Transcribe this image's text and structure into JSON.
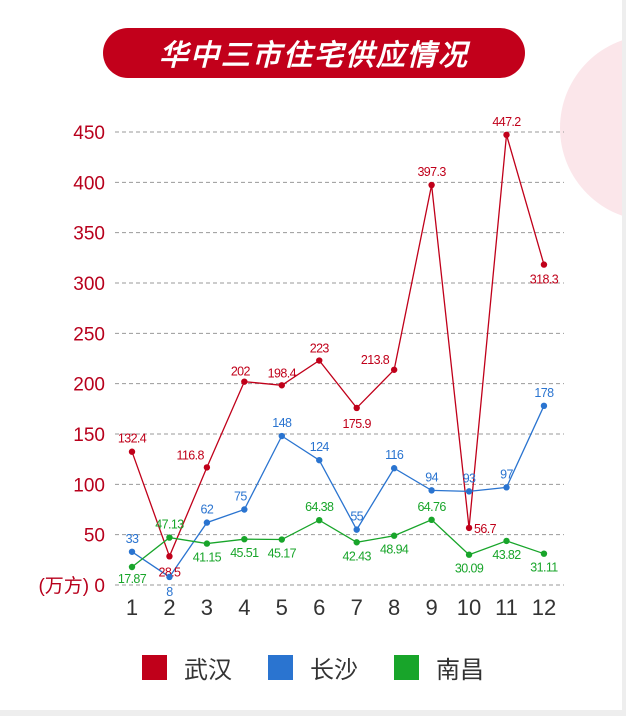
{
  "title": "华中三市住宅供应情况",
  "colors": {
    "title_bg": "#c2001b",
    "axis_label": "#b8001c",
    "grid": "#999999",
    "tick": "#333333",
    "decor_circle": "#fbe6ea"
  },
  "chart_data": {
    "type": "line",
    "title": "华中三市住宅供应情况",
    "xlabel": "",
    "ylabel": "(万方)",
    "categories": [
      "1",
      "2",
      "3",
      "4",
      "5",
      "6",
      "7",
      "8",
      "9",
      "10",
      "11",
      "12"
    ],
    "ylim": [
      0,
      450
    ],
    "yticks": [
      0,
      50,
      100,
      150,
      200,
      250,
      300,
      350,
      400,
      450
    ],
    "ytick_labels": [
      "(万方) 0",
      "50",
      "100",
      "150",
      "200",
      "250",
      "300",
      "350",
      "400",
      "450"
    ],
    "grid": true,
    "grid_style": "dashed",
    "legend_position": "bottom",
    "series": [
      {
        "name": "武汉",
        "color": "#c0001a",
        "values": [
          132.4,
          28.5,
          116.8,
          202,
          198.4,
          223,
          175.9,
          213.8,
          397.3,
          56.7,
          447.2,
          318.3
        ],
        "labels": [
          "132.4",
          "28.5",
          "116.8",
          "202",
          "198.4",
          "223",
          "175.9",
          "213.8",
          "397.3",
          "56.7",
          "447.2",
          "318.3"
        ]
      },
      {
        "name": "长沙",
        "color": "#2a74d0",
        "values": [
          33,
          8,
          62,
          75,
          148,
          124,
          55,
          116,
          94,
          93,
          97,
          178
        ],
        "labels": [
          "33",
          "8",
          "62",
          "75",
          "148",
          "124",
          "55",
          "116",
          "94",
          "93",
          "97",
          "178"
        ]
      },
      {
        "name": "南昌",
        "color": "#18a52a",
        "values": [
          17.87,
          47.13,
          41.15,
          45.51,
          45.17,
          64.38,
          42.43,
          48.94,
          64.76,
          30.09,
          43.82,
          31.11
        ],
        "labels": [
          "17.87",
          "47.13",
          "41.15",
          "45.51",
          "45.17",
          "64.38",
          "42.43",
          "48.94",
          "64.76",
          "30.09",
          "43.82",
          "31.11"
        ]
      }
    ]
  },
  "legend": [
    {
      "label": "武汉",
      "color": "#c0001a"
    },
    {
      "label": "长沙",
      "color": "#2a74d0"
    },
    {
      "label": "南昌",
      "color": "#18a52a"
    }
  ]
}
